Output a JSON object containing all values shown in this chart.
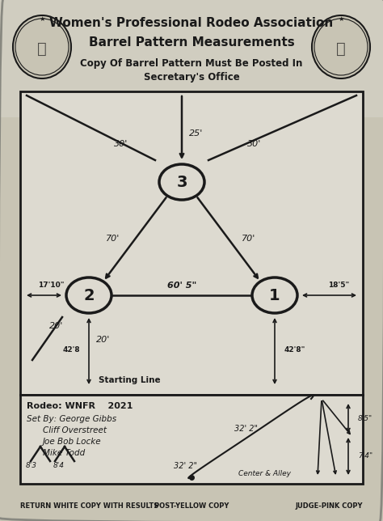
{
  "title1": "Women's Professional Rodeo Association",
  "title2": "Barrel Pattern Measurements",
  "subtitle": "Copy Of Barrel Pattern Must Be Posted In\nSecretary's Office",
  "bg_color": "#c8c4b4",
  "box_bg": "#dddad0",
  "line_color": "#1a1a1a",
  "text_color": "#1a1a1a",
  "barrel1_label": "1",
  "barrel2_label": "2",
  "barrel3_label": "3",
  "dim_b1_b2": "60' 5\"",
  "dim_b2_b3": "70'",
  "dim_b1_b3": "70'",
  "dim_top_left": "30'",
  "dim_top_center": "25'",
  "dim_top_right": "30'",
  "dim_b2_left": "17'10\"",
  "dim_b2_below": "42'8",
  "dim_b2_diag": "20'",
  "dim_b1_right": "18'5\"",
  "dim_b1_below": "42'8\"",
  "dim_startline_b2": "20'",
  "rodeo_label": "Rodeo: WNFR    2021",
  "setby_label": "Set By: George Gibbs",
  "setby2": "Cliff Overstreet",
  "setby3": "Joe Bob Locke",
  "setby4": "Mike Todd",
  "center_alley": "Center & Alley",
  "dim_32_2a": "32' 2\"",
  "dim_32_2b": "32' 2\"",
  "dim_8_5": "8'5\"",
  "dim_7_4": "7'4\"",
  "bottom_text1": "RETURN WHITE COPY WITH RESULTS",
  "bottom_text2": "POST-YELLOW COPY",
  "bottom_text3": "JUDGE-PINK COPY",
  "judges_left1": "8'3",
  "judges_left2": "8'4"
}
